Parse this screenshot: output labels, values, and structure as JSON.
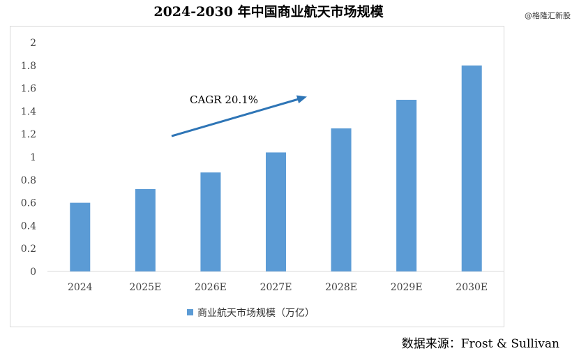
{
  "watermark": "@格隆汇新股",
  "source": "数据来源：Frost & Sullivan",
  "colors": {
    "bar": "#5b9bd5",
    "arrow": "#2e75b6",
    "axis": "#d9d9d9"
  },
  "chart_data": {
    "type": "bar",
    "title": "2024-2030 年中国商业航天市场规模",
    "categories": [
      "2024",
      "2025E",
      "2026E",
      "2027E",
      "2028E",
      "2029E",
      "2030E"
    ],
    "series": [
      {
        "name": "商业航天市场规模（万亿）",
        "values": [
          0.6,
          0.72,
          0.865,
          1.04,
          1.25,
          1.5,
          1.8
        ]
      }
    ],
    "ylim": [
      0,
      2
    ],
    "yticks": [
      "0",
      "0.2",
      "0.4",
      "0.6",
      "0.8",
      "1",
      "1.2",
      "1.4",
      "1.6",
      "1.8",
      "2"
    ],
    "grid": false,
    "legend": "bottom",
    "annotation": {
      "text": "CAGR 20.1%",
      "type": "upward-arrow"
    }
  }
}
